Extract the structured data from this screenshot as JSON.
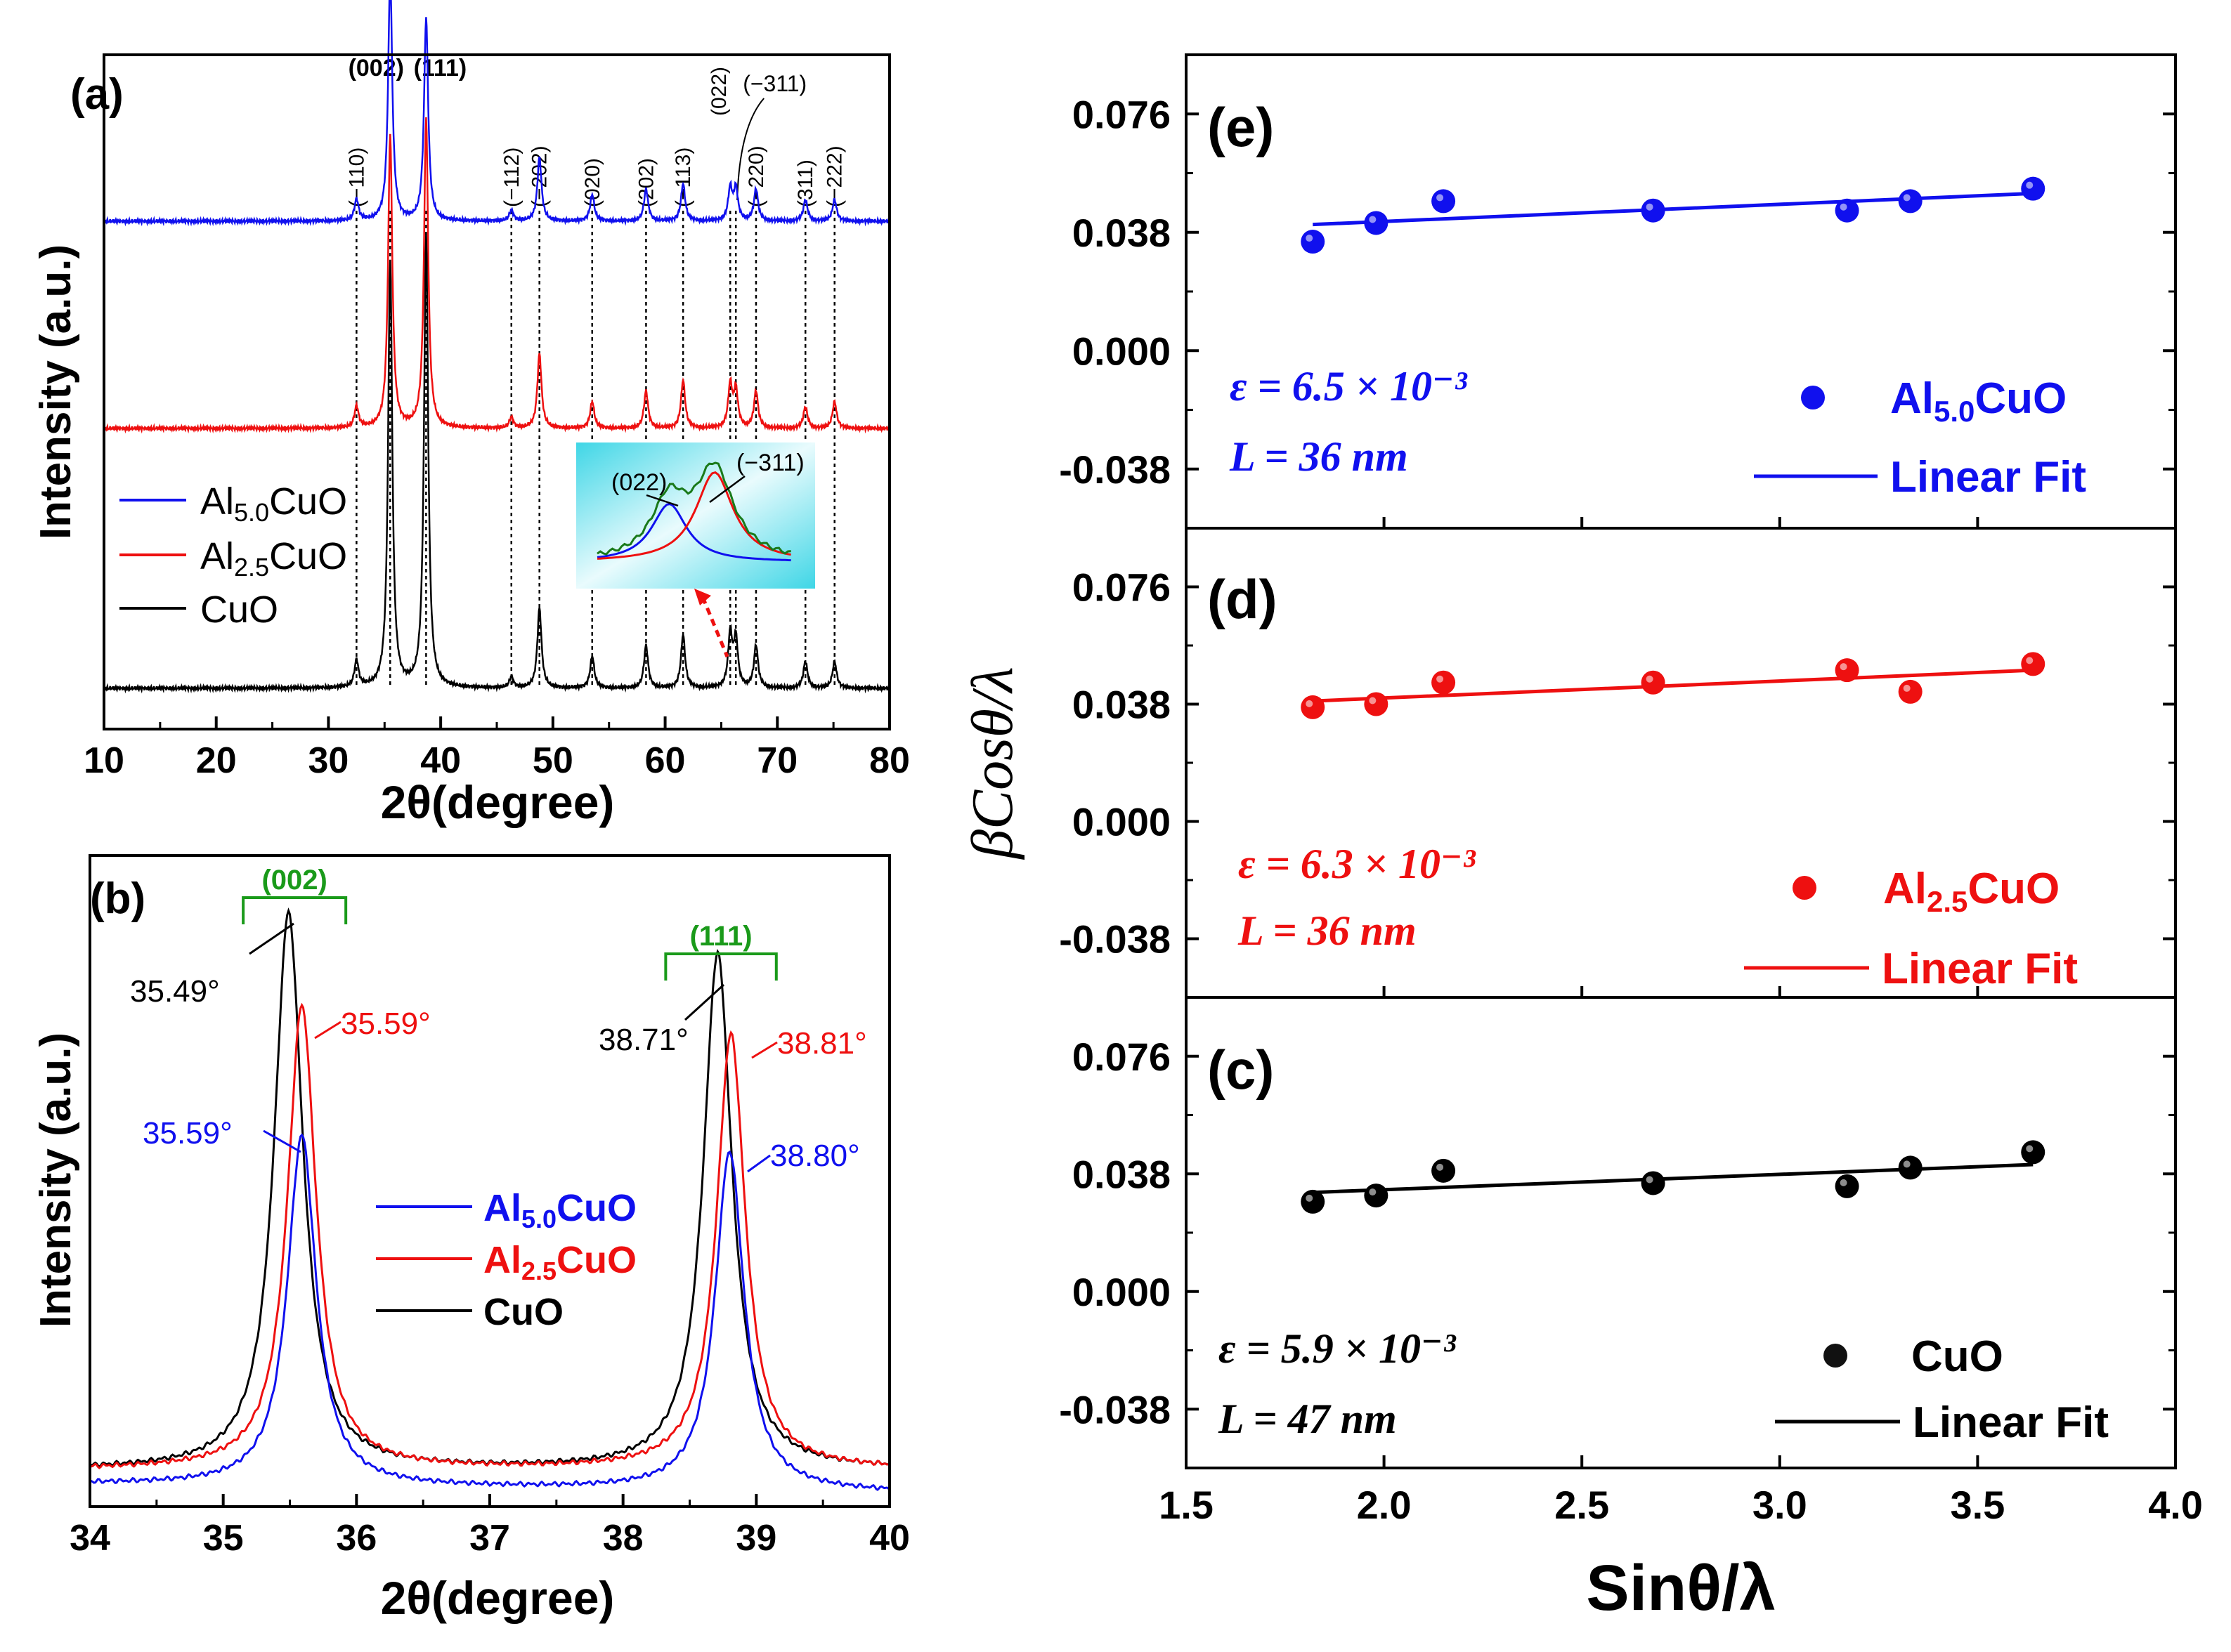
{
  "chart_data": [
    {
      "id": "a",
      "type": "line",
      "panel_label": "(a)",
      "xlabel": "2θ(degree)",
      "ylabel": "Intensity (a.u.)",
      "xlim": [
        10,
        80
      ],
      "xticks": [
        10,
        20,
        30,
        40,
        50,
        60,
        70,
        80
      ],
      "legend": [
        {
          "label": "Al5.0CuO",
          "color": "#1010ee"
        },
        {
          "label": "Al2.5CuO",
          "color": "#ee1010"
        },
        {
          "label": "CuO",
          "color": "#000000"
        }
      ],
      "series": [
        {
          "name": "Al5.0CuO",
          "color": "#1010ee",
          "peak_heights": [
            0.04,
            0.46,
            0.38,
            0.02,
            0.12,
            0.05,
            0.06,
            0.07,
            0.06,
            0.06,
            0.06,
            0.04,
            0.04
          ]
        },
        {
          "name": "Al2.5CuO",
          "color": "#ee1010",
          "peak_heights": [
            0.04,
            0.55,
            0.58,
            0.02,
            0.14,
            0.05,
            0.07,
            0.09,
            0.08,
            0.07,
            0.07,
            0.04,
            0.05
          ]
        },
        {
          "name": "CuO",
          "color": "#000000",
          "peak_heights": [
            0.05,
            0.8,
            0.85,
            0.02,
            0.15,
            0.06,
            0.08,
            0.1,
            0.1,
            0.09,
            0.08,
            0.05,
            0.05
          ]
        }
      ],
      "peaks": [
        {
          "pos": 32.5,
          "label": "(−110)"
        },
        {
          "pos": 35.5,
          "label": "(002)"
        },
        {
          "pos": 38.7,
          "label": "(111)"
        },
        {
          "pos": 46.3,
          "label": "(−112)"
        },
        {
          "pos": 48.8,
          "label": "(−202)"
        },
        {
          "pos": 53.5,
          "label": "(020)"
        },
        {
          "pos": 58.3,
          "label": "(202)"
        },
        {
          "pos": 61.6,
          "label": "(−113)"
        },
        {
          "pos": 65.8,
          "label": "(022)"
        },
        {
          "pos": 66.3,
          "label": "(−311)"
        },
        {
          "pos": 68.1,
          "label": "(−220)"
        },
        {
          "pos": 72.5,
          "label": "(311)"
        },
        {
          "pos": 75.1,
          "label": "(−222)"
        }
      ],
      "inset": {
        "labels": [
          "(022)",
          "(−311)"
        ]
      }
    },
    {
      "id": "b",
      "type": "line",
      "panel_label": "(b)",
      "xlabel": "2θ(degree)",
      "ylabel": "Intensity (a.u.)",
      "xlim": [
        34,
        40
      ],
      "xticks": [
        34,
        35,
        36,
        37,
        38,
        39,
        40
      ],
      "legend": [
        {
          "label": "Al5.0CuO",
          "color": "#1010ee"
        },
        {
          "label": "Al2.5CuO",
          "color": "#ee1010"
        },
        {
          "label": "CuO",
          "color": "#000000"
        }
      ],
      "series": [
        {
          "name": "Al5.0CuO",
          "color": "#1010ee",
          "peaks": [
            {
              "pos": 35.59,
              "height": 0.62
            },
            {
              "pos": 38.8,
              "height": 0.6
            }
          ],
          "baseline": 0.015
        },
        {
          "name": "Al2.5CuO",
          "color": "#ee1010",
          "peaks": [
            {
              "pos": 35.59,
              "height": 0.84
            },
            {
              "pos": 38.81,
              "height": 0.79
            }
          ],
          "baseline": 0.04
        },
        {
          "name": "CuO",
          "color": "#000000",
          "peaks": [
            {
              "pos": 35.49,
              "height": 1.0
            },
            {
              "pos": 38.71,
              "height": 0.93
            }
          ],
          "baseline": 0.04
        }
      ],
      "brackets": [
        {
          "label": "(002)",
          "from": 35.15,
          "to": 35.92
        },
        {
          "label": "(111)",
          "from": 38.32,
          "to": 39.15
        }
      ],
      "annotations": [
        "35.49°",
        "35.59°",
        "35.59°",
        "38.71°",
        "38.81°",
        "38.80°"
      ]
    },
    {
      "id": "e",
      "type": "scatter",
      "panel_label": "(e)",
      "color": "#1010ee",
      "sample": "Al5.0CuO",
      "x": [
        1.82,
        1.98,
        2.15,
        2.68,
        3.17,
        3.33,
        3.64
      ],
      "y": [
        0.035,
        0.041,
        0.048,
        0.045,
        0.045,
        0.048,
        0.052
      ],
      "fit": {
        "x": [
          1.82,
          3.64
        ],
        "y": [
          0.0405,
          0.0505
        ]
      },
      "epsilon": "ε = 6.5 × 10⁻³",
      "L": "L = 36 nm",
      "legend": [
        "Al5.0CuO",
        "Linear Fit"
      ],
      "ylim": [
        -0.057,
        0.095
      ],
      "yticks": [
        0.076,
        0.038,
        0.0,
        -0.038
      ]
    },
    {
      "id": "d",
      "type": "scatter",
      "panel_label": "(d)",
      "color": "#ee1010",
      "sample": "Al2.5CuO",
      "x": [
        1.82,
        1.98,
        2.15,
        2.68,
        3.17,
        3.33,
        3.64
      ],
      "y": [
        0.037,
        0.038,
        0.045,
        0.045,
        0.049,
        0.042,
        0.051
      ],
      "fit": {
        "x": [
          1.82,
          3.64
        ],
        "y": [
          0.039,
          0.049
        ]
      },
      "epsilon": "ε = 6.3 × 10⁻³",
      "L": "L = 36 nm",
      "legend": [
        "Al2.5CuO",
        "Linear Fit"
      ],
      "ylim": [
        -0.057,
        0.095
      ],
      "yticks": [
        0.076,
        0.038,
        0.0,
        -0.038
      ]
    },
    {
      "id": "c",
      "type": "scatter",
      "panel_label": "(c)",
      "color": "#000000",
      "sample": "CuO",
      "x": [
        1.82,
        1.98,
        2.15,
        2.68,
        3.17,
        3.33,
        3.64
      ],
      "y": [
        0.029,
        0.031,
        0.039,
        0.035,
        0.034,
        0.04,
        0.045
      ],
      "fit": {
        "x": [
          1.82,
          3.64
        ],
        "y": [
          0.032,
          0.041
        ]
      },
      "epsilon": "ε = 5.9 × 10⁻³",
      "L": "L = 47 nm",
      "legend": [
        "CuO",
        "Linear Fit"
      ],
      "ylim": [
        -0.057,
        0.095
      ],
      "yticks": [
        0.076,
        0.038,
        0.0,
        -0.038
      ]
    }
  ],
  "right_axes": {
    "xlim": [
      1.5,
      4.0
    ],
    "xticks": [
      "1.5",
      "2.0",
      "2.5",
      "3.0",
      "3.5",
      "4.0"
    ],
    "xlabel": "Sinθ/λ",
    "ylabel": "βCosθ/λ"
  }
}
